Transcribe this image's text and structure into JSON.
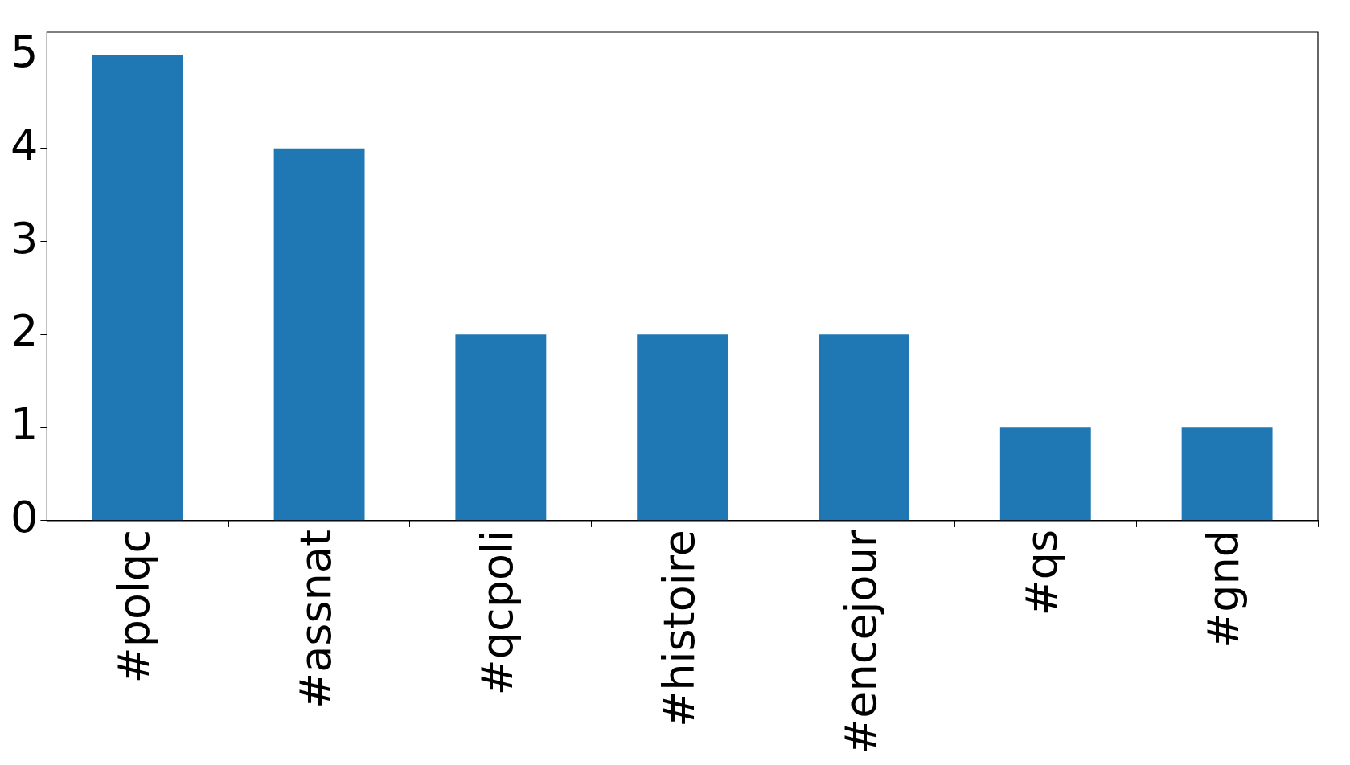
{
  "chart_data": {
    "type": "bar",
    "categories": [
      "#polqc",
      "#assnat",
      "#qcpoli",
      "#histoire",
      "#encejour",
      "#qs",
      "#gnd"
    ],
    "values": [
      5,
      4,
      2,
      2,
      2,
      1,
      1
    ],
    "color": "#1f77b4",
    "ylim": [
      0,
      5.25
    ],
    "yticks": [
      0,
      1,
      2,
      3,
      4,
      5
    ],
    "grid": false,
    "legend": false
  }
}
